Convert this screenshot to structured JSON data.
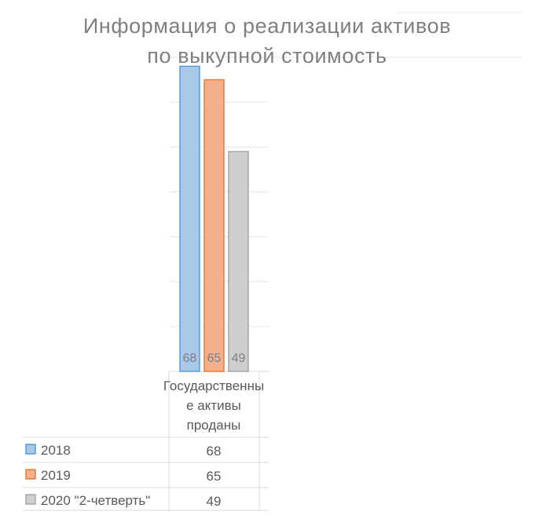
{
  "chart_data": {
    "type": "bar",
    "title": "Информация о реализации активов по выкупной стоимость",
    "title_lines": [
      "Информация о реализации активов",
      "по выкупной стоимость"
    ],
    "categories": [
      "Государственные активы проданы"
    ],
    "category_lines": [
      "Государственны",
      "е активы",
      "проданы"
    ],
    "series": [
      {
        "name": "2018",
        "values": [
          68
        ],
        "color": "#5b9bd5",
        "fill": "#a9c8ea"
      },
      {
        "name": "2019",
        "values": [
          65
        ],
        "color": "#ed7d31",
        "fill": "#f4b08e"
      },
      {
        "name": "2020 \"2-четверть\"",
        "values": [
          49
        ],
        "color": "#a5a5a5",
        "fill": "#cfcfcf"
      }
    ],
    "ylim": [
      0,
      70
    ],
    "grid": true,
    "data_table": true,
    "legend": "in-table"
  }
}
